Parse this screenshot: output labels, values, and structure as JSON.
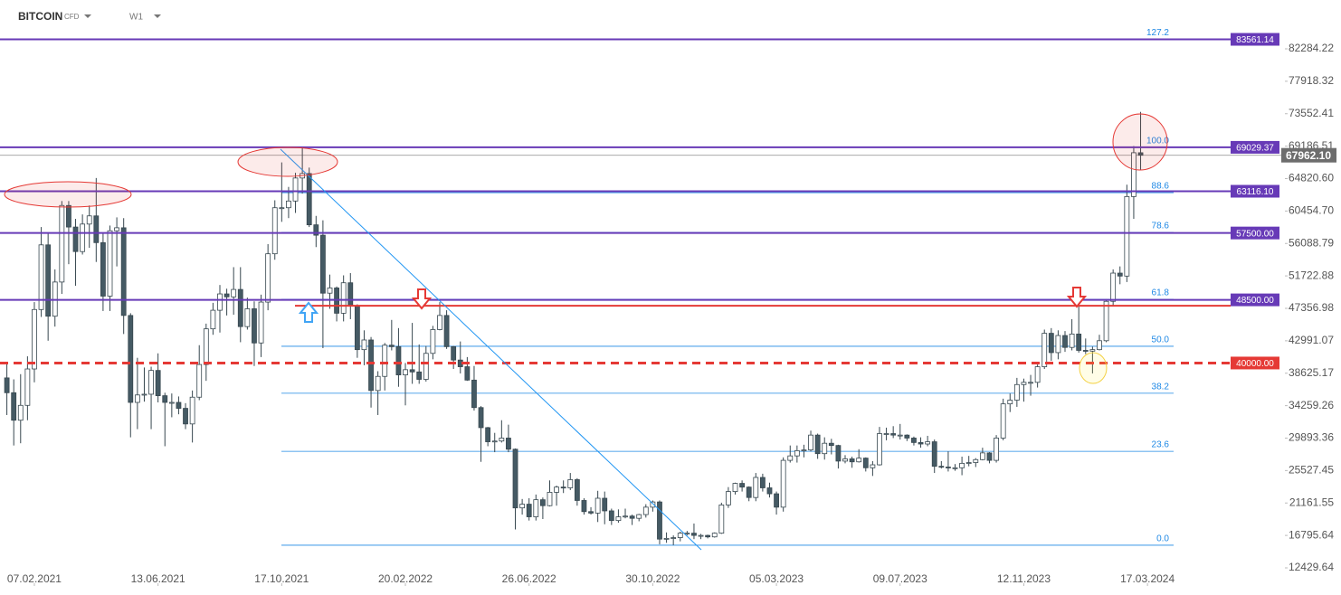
{
  "chart_data": {
    "type": "candlestick",
    "title": "BITCOIN",
    "subtitle": "CFD",
    "timeframe": "W1",
    "xlim": [
      -1,
      186
    ],
    "ylim": [
      10360,
      88856
    ],
    "xticks": [
      {
        "value": 4,
        "label": "07.02.2021"
      },
      {
        "value": 22,
        "label": "13.06.2021"
      },
      {
        "value": 40,
        "label": "17.10.2021"
      },
      {
        "value": 58,
        "label": "20.02.2022"
      },
      {
        "value": 76,
        "label": "26.06.2022"
      },
      {
        "value": 94,
        "label": "30.10.2022"
      },
      {
        "value": 112,
        "label": "05.03.2023"
      },
      {
        "value": 130,
        "label": "09.07.2023"
      },
      {
        "value": 148,
        "label": "12.11.2023"
      },
      {
        "value": 166,
        "label": "17.03.2024"
      }
    ],
    "yticks": [
      82284.22,
      77918.32,
      73552.41,
      69186.51,
      {
        "value": 64820.6,
        "label": "64820.60"
      },
      {
        "value": 60454.7,
        "label": "60454.70"
      },
      56088.79,
      51722.88,
      47356.98,
      42991.07,
      38625.17,
      34259.26,
      29893.36,
      25527.45,
      21161.55,
      16795.64,
      12429.64
    ],
    "up_color": "#ffffff",
    "down_color": "#455a64",
    "outline_color": "#37474f",
    "open": [
      38000,
      36000,
      32300,
      34300,
      39200,
      47200,
      55900,
      46300,
      50900,
      61200,
      58300,
      55000,
      58700,
      59800,
      56200,
      49000,
      57800,
      58200,
      46400,
      34700,
      35700,
      35800,
      39000,
      35600,
      34700,
      34700,
      33900,
      31800,
      35400,
      39800,
      44600,
      47100,
      49300,
      48900,
      49900,
      44900,
      47300,
      42700,
      48200,
      54700,
      60900,
      60900,
      61800,
      64900,
      65500,
      58600,
      57200,
      49400,
      50100,
      46700,
      50800,
      47700,
      41800,
      43100,
      36300,
      38200,
      42400,
      42200,
      38400,
      39100,
      38800,
      37800,
      41300,
      44500,
      46400,
      42200,
      40400,
      39500,
      37700,
      34000,
      31300,
      29400,
      29500,
      29900,
      28400,
      20500,
      21000,
      19300,
      21600,
      20800,
      22600,
      23300,
      23200,
      24300,
      21500,
      20000,
      19800,
      21800,
      20100,
      18800,
      19300,
      19400,
      19100,
      19600,
      20600,
      21300,
      16300,
      16400,
      16500,
      17100,
      17100,
      16800,
      16800,
      16600,
      17100,
      20900,
      22700,
      23800,
      23300,
      21900,
      24600,
      23200,
      22400,
      20600,
      26900,
      27500,
      28200,
      28300,
      30300,
      27800,
      29200,
      28900,
      26800,
      27100,
      26700,
      27200,
      25900,
      26300,
      30500,
      30500,
      30300,
      30300,
      29900,
      29300,
      29100,
      29400,
      26100,
      26000,
      25900,
      25900,
      26500,
      26600,
      27000,
      27900,
      26900,
      29900,
      34500,
      35000,
      37100,
      37400,
      37400,
      39500,
      44000,
      41400,
      43700,
      42100,
      43900,
      41700,
      41600,
      41800,
      43000,
      48300,
      52100,
      51700,
      62400,
      68300
    ],
    "high": [
      40100,
      37800,
      38500,
      40900,
      48200,
      58300,
      57400,
      52600,
      61800,
      61800,
      59400,
      60000,
      61200,
      64900,
      57500,
      58500,
      59600,
      59500,
      46700,
      40700,
      39400,
      39500,
      41300,
      36000,
      35900,
      35500,
      34600,
      36300,
      42400,
      45300,
      48100,
      50500,
      50000,
      52900,
      52900,
      48800,
      48300,
      49200,
      56000,
      61900,
      67000,
      63700,
      65600,
      68900,
      66300,
      59800,
      59200,
      51900,
      50300,
      51800,
      52100,
      47900,
      44400,
      43500,
      38900,
      42700,
      45800,
      44700,
      40000,
      45400,
      42500,
      42300,
      45000,
      48200,
      47100,
      42300,
      42900,
      40800,
      39600,
      34200,
      31400,
      30600,
      32300,
      31700,
      28500,
      21700,
      21800,
      22300,
      21900,
      24200,
      23500,
      24200,
      25200,
      24500,
      21800,
      20600,
      22800,
      22700,
      20400,
      20300,
      20400,
      19600,
      19700,
      21000,
      21500,
      21500,
      17200,
      16800,
      17300,
      17400,
      18400,
      17000,
      16900,
      17200,
      21200,
      23300,
      23900,
      24200,
      23400,
      25200,
      25100,
      23900,
      22700,
      27300,
      28900,
      28900,
      29000,
      30900,
      30500,
      30000,
      29800,
      29000,
      27600,
      27400,
      28400,
      27300,
      26800,
      31400,
      31300,
      31500,
      31800,
      30400,
      30100,
      30000,
      30200,
      29700,
      26800,
      28100,
      26400,
      27400,
      27500,
      27200,
      28600,
      28000,
      30300,
      35200,
      35900,
      38000,
      37900,
      38400,
      39800,
      44500,
      44700,
      44400,
      44300,
      45900,
      49000,
      43300,
      42200,
      43800,
      48600,
      52600,
      53000,
      64000,
      69200,
      73800
    ],
    "low": [
      33000,
      28900,
      29200,
      32300,
      37400,
      46200,
      43000,
      44900,
      49300,
      53300,
      50400,
      54600,
      55500,
      53600,
      47000,
      47000,
      53000,
      43900,
      30000,
      31100,
      34800,
      31100,
      34700,
      28800,
      32700,
      33100,
      31100,
      29300,
      35000,
      37600,
      43800,
      44100,
      46400,
      46500,
      42800,
      44500,
      39600,
      40800,
      47100,
      53900,
      59000,
      59500,
      60200,
      62800,
      58300,
      55600,
      42000,
      47300,
      45600,
      45600,
      45900,
      40700,
      39700,
      34000,
      33000,
      36300,
      41700,
      36800,
      34300,
      37200,
      37200,
      37500,
      40500,
      44400,
      41900,
      39200,
      38600,
      37600,
      33600,
      26700,
      28800,
      28000,
      29300,
      28000,
      17600,
      19600,
      18800,
      18800,
      19000,
      20700,
      20800,
      22500,
      22900,
      20800,
      19600,
      19600,
      18600,
      18300,
      18200,
      18500,
      19100,
      18200,
      18700,
      19200,
      20000,
      15600,
      15800,
      15500,
      16000,
      16800,
      16300,
      16300,
      16400,
      16500,
      17000,
      20500,
      22300,
      22700,
      21400,
      21400,
      22700,
      21900,
      19600,
      20000,
      26600,
      26600,
      27300,
      28100,
      27100,
      27000,
      27700,
      25800,
      26500,
      25900,
      26600,
      25400,
      24800,
      26200,
      29600,
      29900,
      29700,
      29500,
      28900,
      28600,
      28800,
      25200,
      25800,
      25400,
      25500,
      24900,
      26100,
      26000,
      26900,
      26500,
      26600,
      29600,
      33400,
      34100,
      34800,
      35600,
      36700,
      39200,
      40300,
      40500,
      41500,
      41700,
      41400,
      41200,
      38600,
      41700,
      42800,
      47700,
      50600,
      50900,
      59400,
      66000
    ],
    "close": [
      36000,
      32300,
      34300,
      39200,
      47200,
      55900,
      46300,
      50900,
      61200,
      58300,
      55000,
      58700,
      59800,
      56200,
      49000,
      57800,
      58200,
      46400,
      34700,
      35700,
      35800,
      39000,
      35600,
      34700,
      34700,
      33900,
      31800,
      35400,
      39800,
      44600,
      47100,
      49300,
      48900,
      49900,
      44900,
      47300,
      42700,
      48200,
      54700,
      60900,
      60900,
      61800,
      64900,
      65500,
      58600,
      57200,
      49400,
      50100,
      46700,
      50800,
      47700,
      41800,
      43100,
      36300,
      38200,
      42400,
      42200,
      38400,
      39100,
      38800,
      37800,
      41300,
      44500,
      46400,
      42200,
      40400,
      39500,
      37700,
      34000,
      31300,
      29400,
      29500,
      29900,
      28400,
      20500,
      21000,
      19300,
      21600,
      20800,
      22600,
      23300,
      23200,
      24300,
      21500,
      20000,
      19800,
      21800,
      20100,
      18800,
      19300,
      19400,
      19100,
      19600,
      20600,
      21300,
      16300,
      16400,
      16500,
      17100,
      17100,
      16800,
      16800,
      16600,
      17100,
      20900,
      22700,
      23800,
      23300,
      21900,
      24600,
      23200,
      22400,
      20600,
      26900,
      27500,
      28200,
      28300,
      30300,
      27800,
      29200,
      28900,
      26800,
      27100,
      26700,
      27200,
      25900,
      26300,
      30500,
      30500,
      30300,
      30300,
      29900,
      29300,
      29100,
      29400,
      26100,
      26000,
      25900,
      25900,
      26500,
      26600,
      27000,
      27900,
      26900,
      29900,
      34500,
      35000,
      37100,
      37400,
      37400,
      39500,
      44000,
      41400,
      43700,
      42100,
      43900,
      41700,
      41600,
      41800,
      43000,
      48300,
      52100,
      51700,
      62400,
      68300,
      67962.1
    ],
    "last_price": {
      "value": 67962.1,
      "label": "67962.10",
      "color": "#6d6d6d"
    },
    "levels": [
      {
        "value": 83561.14,
        "label": "83561.14",
        "color": "#673ab7",
        "style": "solid"
      },
      {
        "value": 69029.37,
        "label": "69029.37",
        "color": "#673ab7",
        "style": "solid"
      },
      {
        "value": 63116.1,
        "label": "63116.10",
        "color": "#673ab7",
        "style": "solid"
      },
      {
        "value": 57500,
        "label": "57500.00",
        "color": "#673ab7",
        "style": "solid"
      },
      {
        "value": 48500,
        "label": "48500.00",
        "color": "#673ab7",
        "style": "solid"
      },
      {
        "value": 47700,
        "color": "#e53935",
        "style": "solid"
      },
      {
        "value": 40000,
        "label": "40000.00",
        "color": "#e53935",
        "style": "dashed"
      }
    ],
    "fib_color": "#1e88e5",
    "fib_levels": [
      {
        "label": "127.2",
        "value": 83594
      },
      {
        "label": "100.0",
        "value": 69029
      },
      {
        "label": "88.6",
        "value": 62924
      },
      {
        "label": "78.6",
        "value": 57570
      },
      {
        "label": "61.8",
        "value": 48574
      },
      {
        "label": "50.0",
        "value": 42254
      },
      {
        "label": "38.2",
        "value": 35935
      },
      {
        "label": "23.6",
        "value": 28117
      },
      {
        "label": "0.0",
        "value": 15480
      }
    ]
  }
}
